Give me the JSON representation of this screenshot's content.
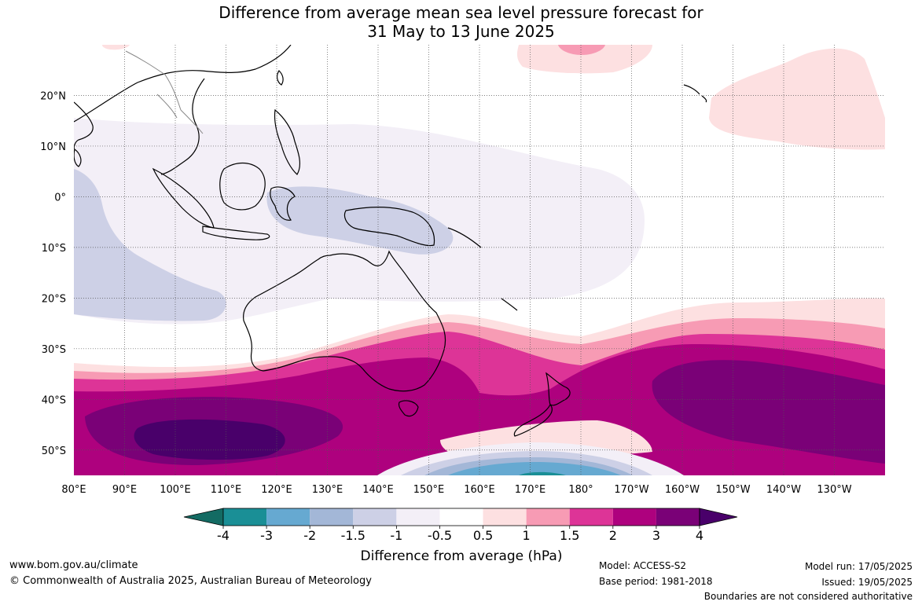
{
  "title": {
    "line1": "Difference from average mean sea level pressure forecast for",
    "line2": "31 May to 13 June 2025"
  },
  "map": {
    "lat_labels": [
      "20°N",
      "10°N",
      "0°",
      "10°S",
      "20°S",
      "30°S",
      "40°S",
      "50°S"
    ],
    "lon_labels": [
      "80°E",
      "90°E",
      "100°E",
      "110°E",
      "120°E",
      "130°E",
      "140°E",
      "150°E",
      "160°E",
      "170°E",
      "180°",
      "170°W",
      "160°W",
      "150°W",
      "140°W",
      "130°W"
    ],
    "lat_range": [
      -55,
      30
    ],
    "lon_range": [
      80,
      240
    ]
  },
  "colorbar": {
    "label": "Difference from average (hPa)",
    "ticks": [
      "-4",
      "-3",
      "-2",
      "-1.5",
      "-1",
      "-0.5",
      "0.5",
      "1",
      "1.5",
      "2",
      "3",
      "4"
    ],
    "colors": [
      "#136b63",
      "#1a8f96",
      "#66a9d1",
      "#a3b7d7",
      "#cdd0e6",
      "#f3eff7",
      "#ffffff",
      "#fde0e1",
      "#f79bb4",
      "#dd3497",
      "#ae017e",
      "#7a0177",
      "#49006a"
    ]
  },
  "footer": {
    "website": "www.bom.gov.au/climate",
    "copyright": "© Commonwealth of Australia 2025, Australian Bureau of Meteorology",
    "model": "Model: ACCESS-S2",
    "base_period": "Base period: 1981-2018",
    "model_run": "Model run: 17/05/2025",
    "issued": "Issued: 19/05/2025",
    "disclaimer": "Boundaries are not considered authoritative"
  }
}
